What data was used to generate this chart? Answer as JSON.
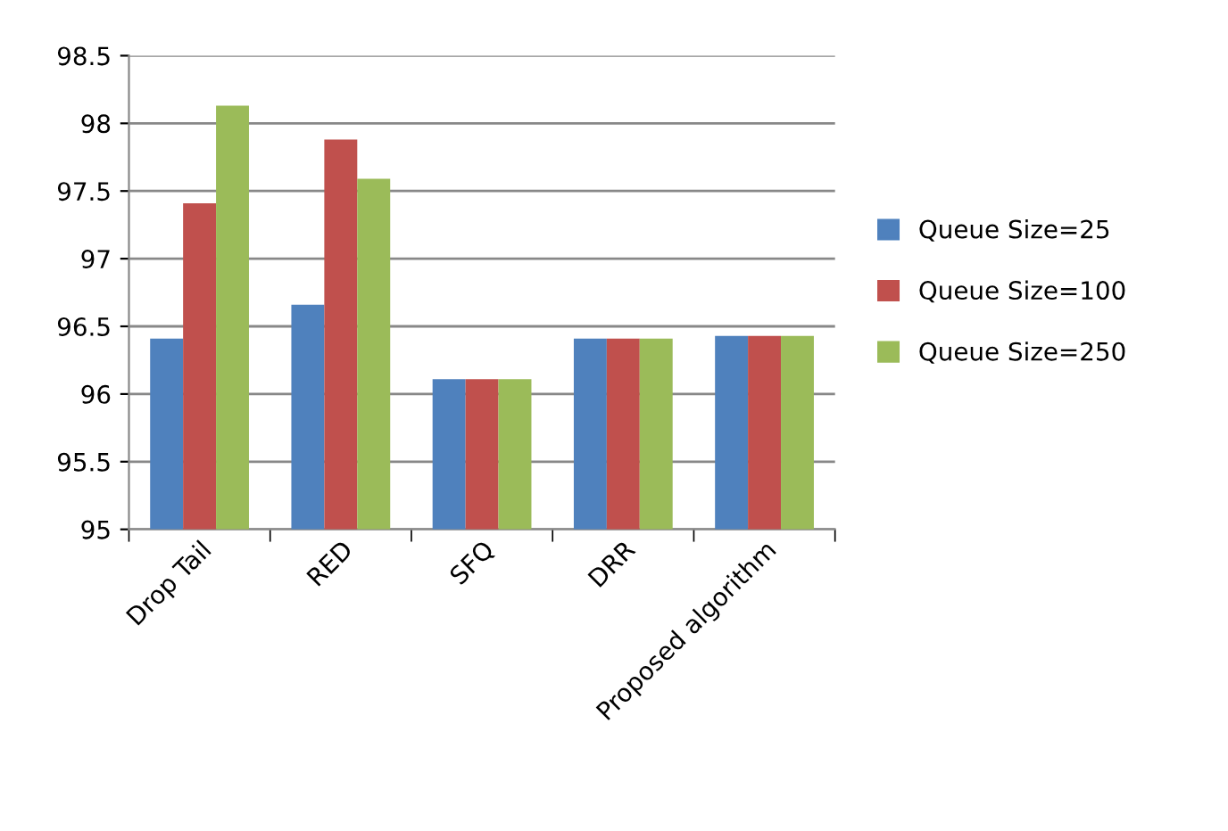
{
  "chart_data": {
    "type": "bar",
    "categories": [
      "Drop Tail",
      "RED",
      "SFQ",
      "DRR",
      "Proposed algorithm"
    ],
    "series": [
      {
        "name": "Queue Size=25",
        "color": "#4f81bd",
        "values": [
          96.41,
          96.66,
          96.11,
          96.41,
          96.43
        ]
      },
      {
        "name": "Queue Size=100",
        "color": "#c0504d",
        "values": [
          97.41,
          97.88,
          96.11,
          96.41,
          96.43
        ]
      },
      {
        "name": "Queue Size=250",
        "color": "#9bbb59",
        "values": [
          98.13,
          97.59,
          96.11,
          96.41,
          96.43
        ]
      }
    ],
    "ylim": [
      95,
      98.5
    ],
    "yticks": [
      95,
      95.5,
      96,
      96.5,
      97,
      97.5,
      98,
      98.5
    ],
    "grid": "y",
    "legend": "right"
  }
}
